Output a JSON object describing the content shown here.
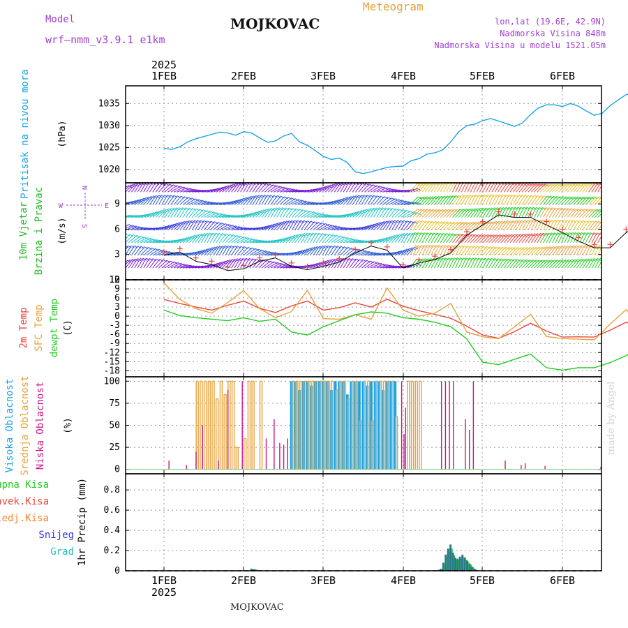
{
  "header": {
    "model_label": "Model",
    "model_name": "wrf—nmm_v3.9.1 e1km",
    "station": "MOJKOVAC",
    "product": "Meteogram",
    "lonlat": "lon,lat (19.6E, 42.9N)",
    "elevation": "Nadmorska Visina 848m",
    "model_elevation": "Nadmorska Visina u modelu 1521.05m"
  },
  "footer": {
    "station": "MOJKOVAC",
    "watermark": "made by Angel"
  },
  "colors": {
    "pressure": "#1aa3e8",
    "wind_label": "#22bb22",
    "temp2m": "#e8463c",
    "sfc": "#e6a23c",
    "dewpt": "#22cc22",
    "high_cloud": "#1aa3e8",
    "mid_cloud": "#e6a23c",
    "low_cloud": "#c8148c",
    "total_precip": "#22cc22",
    "conv_precip": "#e8463c",
    "frozen_precip": "#ff7f27",
    "snow": "#3333dd",
    "graupel": "#22bbbb",
    "grid": "#999999",
    "compass": "#a040d0"
  },
  "chart_data": [
    {
      "type": "line",
      "panel": "pressure",
      "title": "",
      "year_label": "2025",
      "categories": [
        "1FEB",
        "2FEB",
        "3FEB",
        "4FEB",
        "5FEB",
        "6FEB"
      ],
      "ylabel_side": "Pritisak na nivou mora",
      "ylabel_unit": "(hPa)",
      "ylim": [
        1017,
        1039
      ],
      "yticks": [
        1020,
        1025,
        1030,
        1035
      ],
      "grid": true,
      "series": [
        {
          "name": "Pritisak na nivou mora",
          "x": [
            0,
            0.1,
            0.2,
            0.3,
            0.4,
            0.5,
            0.6,
            0.7,
            0.8,
            0.9,
            1.0,
            1.1,
            1.2,
            1.3,
            1.4,
            1.5,
            1.6,
            1.7,
            1.8,
            1.9,
            2.0,
            2.1,
            2.2,
            2.3,
            2.4,
            2.5,
            2.6,
            2.7,
            2.8,
            2.9,
            3.0,
            3.1,
            3.2,
            3.3,
            3.4,
            3.5,
            3.6,
            3.7,
            3.8,
            3.9,
            4.0,
            4.1,
            4.2,
            4.3,
            4.4,
            4.5,
            4.6,
            4.7,
            4.8,
            4.9,
            5.0,
            5.1,
            5.2,
            5.3,
            5.4,
            5.5,
            5.6,
            5.7,
            5.8,
            5.9,
            6.0,
            6.1,
            6.2,
            6.3,
            6.4,
            6.5,
            6.6,
            6.7
          ],
          "values": [
            1024.8,
            1024.6,
            1025.2,
            1026.3,
            1027.0,
            1027.5,
            1028.0,
            1028.5,
            1028.3,
            1027.8,
            1028.6,
            1028.3,
            1027.2,
            1026.2,
            1026.5,
            1027.6,
            1028.2,
            1026.3,
            1025.5,
            1024.3,
            1023.0,
            1022.3,
            1022.6,
            1021.6,
            1019.5,
            1019.1,
            1019.5,
            1020.0,
            1020.5,
            1020.7,
            1020.8,
            1022.0,
            1022.5,
            1023.5,
            1023.8,
            1024.5,
            1026.3,
            1028.6,
            1030.0,
            1030.3,
            1031.1,
            1031.6,
            1031.0,
            1030.4,
            1029.8,
            1030.6,
            1032.5,
            1034.0,
            1034.7,
            1034.7,
            1034.3,
            1035.0,
            1034.4,
            1033.3,
            1032.3,
            1032.8,
            1034.5,
            1035.8,
            1037.0,
            1037.4,
            1037.1,
            1036.9,
            1037.0,
            1036.2,
            1035.5,
            1034.2,
            1033.7,
            1033.6
          ]
        }
      ]
    },
    {
      "type": "line",
      "panel": "wind",
      "title": "",
      "ylabel_side": [
        "10m Vjetar",
        "Brzina i Pravac"
      ],
      "ylabel_unit": "(m/s)",
      "compass": {
        "n": "N",
        "w": "W",
        "e": "E",
        "s": "S"
      },
      "ylim": [
        0,
        11.5
      ],
      "yticks": [
        0,
        3,
        6,
        9,
        12
      ],
      "grid": true,
      "barb_levels": [
        1.4,
        2.9,
        4.4,
        5.9,
        7.4,
        8.9,
        10.4
      ],
      "series": [
        {
          "name": "10m Vjetar",
          "x": [
            0,
            0.2,
            0.4,
            0.6,
            0.8,
            1.0,
            1.2,
            1.4,
            1.6,
            1.8,
            2.0,
            2.2,
            2.4,
            2.6,
            2.8,
            3.0,
            3.2,
            3.4,
            3.6,
            3.8,
            4.0,
            4.2,
            4.4,
            4.6,
            4.8,
            5.0,
            5.2,
            5.4,
            5.6,
            5.8,
            6.0,
            6.2,
            6.4,
            6.6,
            6.7
          ],
          "values": [
            2.9,
            3.3,
            2.2,
            1.8,
            1.1,
            1.3,
            2.2,
            2.6,
            1.6,
            1.2,
            1.6,
            2.1,
            3.2,
            4.0,
            3.5,
            1.4,
            2.0,
            2.4,
            3.2,
            5.3,
            6.5,
            7.7,
            7.4,
            7.4,
            6.5,
            5.6,
            4.6,
            3.8,
            3.8,
            5.6,
            6.8,
            6.6,
            6.0,
            6.6,
            6.1
          ]
        }
      ]
    },
    {
      "type": "line",
      "panel": "temperature",
      "title": "",
      "ylabel_side": [
        "2m Temp",
        "SFC Temp",
        "dewpt Temp"
      ],
      "ylabel_unit": "(C)",
      "ylim": [
        -20,
        12
      ],
      "yticks": [
        -18,
        -15,
        -12,
        -9,
        -6,
        -3,
        0,
        3,
        6,
        9,
        12
      ],
      "grid": true,
      "series": [
        {
          "name": "2m Temp",
          "x": [
            0,
            0.2,
            0.4,
            0.6,
            0.8,
            1.0,
            1.2,
            1.4,
            1.6,
            1.8,
            2.0,
            2.2,
            2.4,
            2.6,
            2.8,
            3.0,
            3.2,
            3.4,
            3.6,
            3.8,
            4.0,
            4.2,
            4.4,
            4.6,
            4.8,
            5.0,
            5.2,
            5.4,
            5.6,
            5.8,
            6.0,
            6.2,
            6.4,
            6.6,
            6.7
          ],
          "values": [
            5.5,
            4.2,
            3.0,
            2.0,
            3.6,
            5.0,
            2.6,
            1.2,
            3.4,
            5.0,
            2.0,
            2.8,
            4.4,
            3.0,
            5.6,
            3.3,
            1.8,
            0.6,
            -0.7,
            -3.3,
            -6.2,
            -7.3,
            -5.1,
            -2.3,
            -4.9,
            -6.9,
            -6.8,
            -6.9,
            -4.6,
            -2.0,
            -4.2,
            -5.1,
            -5.2,
            -1.8,
            0.9
          ]
        },
        {
          "name": "SFC Temp",
          "x": [
            0,
            0.2,
            0.4,
            0.6,
            0.8,
            1.0,
            1.2,
            1.4,
            1.6,
            1.8,
            2.0,
            2.2,
            2.4,
            2.6,
            2.8,
            3.0,
            3.2,
            3.4,
            3.6,
            3.8,
            4.0,
            4.2,
            4.4,
            4.6,
            4.8,
            5.0,
            5.2,
            5.4,
            5.6,
            5.8,
            6.0,
            6.2,
            6.4,
            6.6,
            6.7
          ],
          "values": [
            11.0,
            5.5,
            2.5,
            1.0,
            4.5,
            8.5,
            2.5,
            -0.5,
            1.5,
            8.5,
            -0.8,
            -1.0,
            0.5,
            -1.0,
            9.3,
            2.0,
            0.0,
            1.0,
            4.2,
            -5.2,
            -6.8,
            -7.4,
            -3.5,
            0.6,
            -6.7,
            -7.4,
            -7.6,
            -7.8,
            -2.6,
            2.2,
            -4.8,
            -5.5,
            -5.6,
            1.2,
            5.2
          ]
        },
        {
          "name": "dewpt Temp",
          "x": [
            0,
            0.2,
            0.4,
            0.6,
            0.8,
            1.0,
            1.2,
            1.4,
            1.6,
            1.8,
            2.0,
            2.2,
            2.4,
            2.6,
            2.8,
            3.0,
            3.2,
            3.4,
            3.6,
            3.8,
            4.0,
            4.2,
            4.4,
            4.6,
            4.8,
            5.0,
            5.2,
            5.4,
            5.6,
            5.8,
            6.0,
            6.2,
            6.4,
            6.6,
            6.7
          ],
          "values": [
            2.0,
            0.2,
            -0.5,
            -1.0,
            -1.5,
            -0.5,
            -1.7,
            -1.0,
            -5.2,
            -6.2,
            -3.5,
            -1.5,
            0.5,
            1.4,
            1.0,
            -0.5,
            -1.0,
            -2.0,
            -3.5,
            -7.5,
            -15.2,
            -16.0,
            -14.2,
            -12.5,
            -17.0,
            -17.8,
            -17.0,
            -17.0,
            -15.3,
            -13.0,
            -10.0,
            -8.2,
            -7.8,
            -6.5,
            -4.2
          ]
        }
      ]
    },
    {
      "type": "bar",
      "panel": "clouds",
      "title": "",
      "ylabel_side": [
        "Visoka Oblacnost",
        "Srednja Oblacnost",
        "Niska Oblacnost"
      ],
      "ylabel_unit": "(%)",
      "ylim": [
        -5,
        105
      ],
      "yticks": [
        0,
        25,
        50,
        75,
        100
      ],
      "grid": true,
      "series": [
        {
          "name": "Visoka Oblacnost",
          "x": [
            1.6,
            1.65,
            1.7,
            1.75,
            1.8,
            1.85,
            1.9,
            1.95,
            2.0,
            2.05,
            2.1,
            2.15,
            2.2,
            2.25,
            2.3,
            2.35,
            2.4,
            2.45,
            2.5,
            2.55,
            2.6,
            2.65,
            2.7,
            2.75,
            2.8,
            2.85,
            2.9
          ],
          "values": [
            100,
            100,
            90,
            100,
            100,
            95,
            100,
            100,
            100,
            100,
            90,
            100,
            100,
            100,
            85,
            100,
            100,
            100,
            100,
            95,
            100,
            100,
            100,
            90,
            100,
            100,
            100
          ]
        },
        {
          "name": "Srednja Oblacnost",
          "x": [
            0.4,
            0.45,
            0.5,
            0.55,
            0.6,
            0.65,
            0.7,
            0.75,
            0.8,
            0.85,
            0.9,
            1.0,
            1.05,
            1.1,
            1.2,
            1.6,
            1.65,
            1.7,
            1.75,
            1.8,
            1.85,
            1.9,
            1.95,
            2.0,
            2.05,
            2.1,
            2.15,
            2.2,
            2.25,
            2.3,
            2.35,
            2.4,
            2.45,
            2.5,
            2.55,
            2.6,
            2.65,
            2.7,
            2.75,
            2.8,
            2.85,
            2.9,
            3.05,
            3.1,
            3.15,
            3.2
          ],
          "values": [
            100,
            100,
            100,
            100,
            100,
            80,
            100,
            85,
            100,
            100,
            25,
            35,
            100,
            100,
            100,
            100,
            100,
            100,
            100,
            100,
            100,
            100,
            100,
            100,
            100,
            100,
            90,
            100,
            100,
            80,
            100,
            100,
            55,
            100,
            100,
            55,
            100,
            100,
            100,
            100,
            100,
            60,
            100,
            100,
            100,
            100
          ]
        },
        {
          "name": "Niska Oblacnost",
          "x": [
            0.08,
            0.3,
            0.42,
            0.5,
            0.7,
            0.82,
            1.0,
            1.3,
            1.4,
            1.47,
            1.52,
            1.57,
            3.0,
            3.03,
            3.05,
            3.5,
            3.55,
            3.6,
            3.65,
            3.8,
            3.85,
            3.9,
            4.3,
            4.5,
            4.55,
            4.8,
            5.5,
            5.9,
            5.95,
            6.1,
            6.15,
            6.3,
            6.35,
            6.6
          ],
          "values": [
            10,
            5,
            20,
            50,
            10,
            90,
            100,
            35,
            57,
            30,
            28,
            35,
            100,
            40,
            70,
            100,
            100,
            100,
            100,
            57,
            45,
            100,
            10,
            5,
            7,
            4,
            3,
            10,
            10,
            10,
            10,
            8,
            3,
            3
          ]
        }
      ]
    },
    {
      "type": "bar",
      "panel": "precipitation",
      "title": "",
      "ylabel_side": "1hr Precip (mm)",
      "legend": [
        "Ukupna Kisa",
        "Konvek.Kisa",
        "Zaledj.Kisa",
        "Snijeg",
        "Grad"
      ],
      "ylim": [
        0,
        0.96
      ],
      "yticks": [
        0,
        0.2,
        0.4,
        0.6,
        0.8
      ],
      "grid": true,
      "series": [
        {
          "name": "Ukupna Kisa",
          "x": [
            1.1,
            1.12,
            1.14,
            1.16,
            3.45,
            3.48,
            3.51,
            3.54,
            3.57,
            3.6,
            3.63,
            3.66,
            3.69,
            3.72,
            3.75,
            3.78,
            3.81,
            3.84,
            3.87,
            3.9
          ],
          "values": [
            0.02,
            0.01,
            0.015,
            0.01,
            0.01,
            0.02,
            0.08,
            0.16,
            0.22,
            0.26,
            0.18,
            0.13,
            0.12,
            0.14,
            0.16,
            0.13,
            0.1,
            0.07,
            0.04,
            0.02
          ]
        }
      ]
    }
  ],
  "xaxis": {
    "year": "2025",
    "labels": [
      "1FEB",
      "2FEB",
      "3FEB",
      "4FEB",
      "5FEB",
      "6FEB"
    ]
  }
}
